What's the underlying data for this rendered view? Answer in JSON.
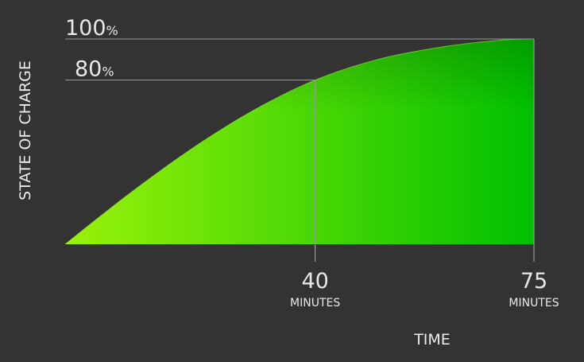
{
  "chart_data": {
    "type": "area",
    "ylabel": "STATE OF CHARGE",
    "xlabel": "TIME",
    "x": [
      0,
      10,
      20,
      30,
      40,
      50,
      60,
      70,
      75
    ],
    "y": [
      0,
      24,
      46,
      65,
      80,
      90,
      96,
      99.5,
      100
    ],
    "xlim": [
      0,
      75
    ],
    "ylim": [
      0,
      100
    ],
    "reference_lines": [
      {
        "axis": "y",
        "value": 100,
        "label_number": "100",
        "label_unit": "%"
      },
      {
        "axis": "y",
        "value": 80,
        "label_number": "80",
        "label_unit": "%"
      }
    ],
    "x_markers": [
      {
        "value": 40,
        "label_number": "40",
        "label_unit": "MINUTES"
      },
      {
        "value": 75,
        "label_number": "75",
        "label_unit": "MINUTES"
      }
    ],
    "grid": false,
    "legend": "none",
    "fill_colors": {
      "light": "#9af20a",
      "dark": "#00c000"
    },
    "line_color": "#9a9a9a"
  }
}
